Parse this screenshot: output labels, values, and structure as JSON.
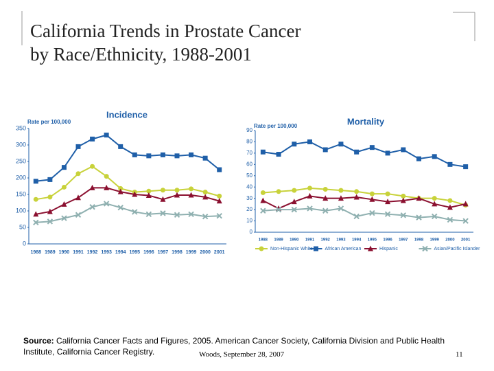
{
  "title_line1": "California Trends in Prostate Cancer",
  "title_line2": "by Race/Ethnicity, 1988-2001",
  "chart_data": [
    {
      "type": "line",
      "title": "Incidence",
      "y_label": "Rate per 100,000",
      "categories": [
        "1988",
        "1989",
        "1990",
        "1991",
        "1992",
        "1993",
        "1994",
        "1995",
        "1996",
        "1997",
        "1998",
        "1999",
        "2000",
        "2001"
      ],
      "ylim": [
        0,
        350
      ],
      "yticks": [
        0,
        50,
        100,
        150,
        200,
        250,
        300,
        350
      ],
      "series": [
        {
          "color": "#1f5fa8",
          "marker": "square",
          "values": [
            190,
            195,
            232,
            295,
            318,
            330,
            295,
            270,
            267,
            270,
            267,
            270,
            260,
            225
          ]
        },
        {
          "color": "#c8d23a",
          "marker": "circle",
          "values": [
            135,
            142,
            172,
            213,
            235,
            205,
            168,
            157,
            160,
            163,
            163,
            167,
            157,
            145
          ]
        },
        {
          "color": "#8b1030",
          "marker": "triangle",
          "values": [
            90,
            98,
            120,
            140,
            170,
            170,
            158,
            150,
            147,
            135,
            148,
            148,
            142,
            130
          ]
        },
        {
          "color": "#8fb0b0",
          "marker": "cross",
          "values": [
            65,
            68,
            78,
            88,
            112,
            122,
            110,
            97,
            90,
            93,
            88,
            90,
            83,
            85
          ]
        }
      ]
    },
    {
      "type": "line",
      "title": "Mortality",
      "y_label": "Rate per 100,000",
      "categories": [
        "1988",
        "1989",
        "1990",
        "1991",
        "1992",
        "1993",
        "1994",
        "1995",
        "1996",
        "1997",
        "1998",
        "1999",
        "2000",
        "2001"
      ],
      "ylim": [
        0,
        90
      ],
      "yticks": [
        0,
        10,
        20,
        30,
        40,
        50,
        60,
        70,
        80,
        90
      ],
      "legend": "bottom",
      "series": [
        {
          "name": "Non-Hispanic White",
          "color": "#c8d23a",
          "marker": "circle",
          "values": [
            35,
            36,
            37,
            39,
            38,
            37,
            36,
            34,
            34,
            32,
            30,
            30,
            28,
            24
          ]
        },
        {
          "name": "African American",
          "color": "#1f5fa8",
          "marker": "square",
          "values": [
            71,
            69,
            78,
            80,
            73,
            78,
            71,
            75,
            70,
            73,
            65,
            67,
            60,
            58
          ]
        },
        {
          "name": "Hispanic",
          "color": "#8b1030",
          "marker": "triangle",
          "values": [
            28,
            21,
            27,
            32,
            30,
            30,
            31,
            29,
            27,
            28,
            30,
            25,
            22,
            25
          ]
        },
        {
          "name": "Asian/Pacific Islander",
          "color": "#8fb0b0",
          "marker": "cross",
          "values": [
            19,
            20,
            20,
            21,
            19,
            21,
            14,
            17,
            16,
            15,
            13,
            14,
            11,
            10
          ]
        }
      ]
    }
  ],
  "source_label": "Source:",
  "source": "California Cancer Facts and Figures, 2005. American Cancer Society, California Division and Public Health Institute, California Cancer Registry.",
  "footer": "Woods, September 28, 2007",
  "page_number": "11"
}
